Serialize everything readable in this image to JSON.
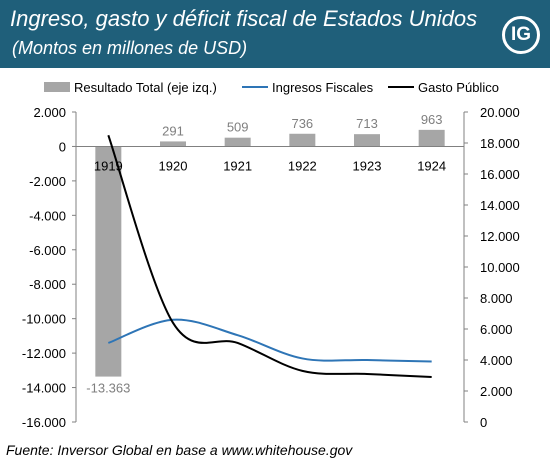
{
  "header": {
    "title": "Ingreso, gasto y déficit fiscal de Estados Unidos",
    "subtitle": "(Montos en millones de USD)",
    "logo_text": "IG",
    "background_color": "#1f5f7a"
  },
  "footer": {
    "source": "Fuente: Inversor Global en base a www.whitehouse.gov"
  },
  "chart_data": {
    "type": "bar",
    "categories": [
      "1919",
      "1920",
      "1921",
      "1922",
      "1923",
      "1924"
    ],
    "series": [
      {
        "name": "Resultado Total (eje izq.)",
        "kind": "bar",
        "axis": "left",
        "color": "#a6a6a6",
        "values": [
          -13363,
          291,
          509,
          736,
          713,
          963
        ],
        "labels": [
          "-13.363",
          "291",
          "509",
          "736",
          "713",
          "963"
        ]
      },
      {
        "name": "Ingresos Fiscales",
        "kind": "line",
        "axis": "right",
        "color": "#2e75b6",
        "values": [
          5.1,
          6.6,
          5.6,
          4.1,
          4.0,
          3.9
        ]
      },
      {
        "name": "Gasto Público",
        "kind": "line",
        "axis": "right",
        "color": "#000000",
        "values": [
          18.5,
          6.4,
          5.1,
          3.3,
          3.1,
          2.9
        ]
      }
    ],
    "left_axis": {
      "ylim": [
        -16000,
        2000
      ],
      "ticks": [
        -16000,
        -14000,
        -12000,
        -10000,
        -8000,
        -6000,
        -4000,
        -2000,
        0,
        2000
      ],
      "tick_labels": [
        "-16.000",
        "-14.000",
        "-12.000",
        "-10.000",
        "-8.000",
        "-6.000",
        "-4.000",
        "-2.000",
        "0",
        "2.000"
      ]
    },
    "right_axis": {
      "ylim": [
        0,
        20
      ],
      "ticks": [
        0,
        2,
        4,
        6,
        8,
        10,
        12,
        14,
        16,
        18,
        20
      ],
      "tick_labels": [
        "0",
        "2.000",
        "4.000",
        "6.000",
        "8.000",
        "10.000",
        "12.000",
        "14.000",
        "16.000",
        "18.000",
        "20.000"
      ]
    },
    "legend_position": "top",
    "grid": false
  }
}
